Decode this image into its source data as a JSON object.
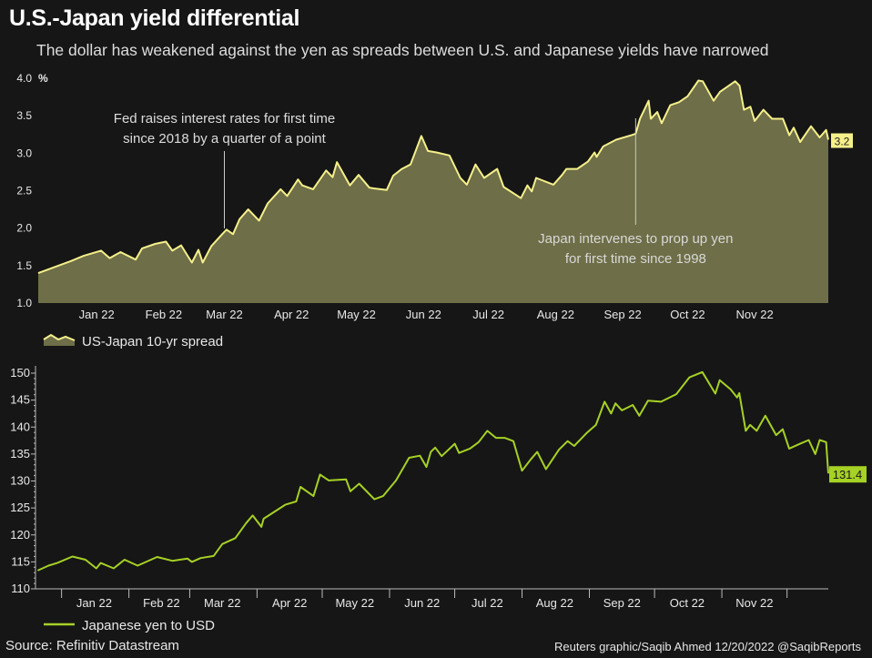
{
  "header": {
    "title": "U.S.-Japan yield differential",
    "subtitle": "The dollar has weakened against the yen as spreads between U.S. and Japanese yields have narrowed"
  },
  "footer": {
    "source": "Source: Refinitiv Datastream",
    "credit": "Reuters graphic/Saqib Ahmed 12/20/2022 @SaqibReports"
  },
  "colors": {
    "background": "#161616",
    "spread_line": "#f5f08a",
    "spread_fill": "#6e6e48",
    "yen_line": "#a6d125"
  },
  "chart_data": [
    {
      "type": "area",
      "title": "",
      "ylabel": "%",
      "ylim": [
        1.0,
        4.0
      ],
      "yticks": [
        "1.0",
        "1.5",
        "2.0",
        "2.5",
        "3.0",
        "3.5",
        "4.0"
      ],
      "xlim": [
        "2021-12-20",
        "2022-12-20"
      ],
      "xtick_labels": [
        "Jan 22",
        "Feb 22",
        "Mar 22",
        "Apr 22",
        "May 22",
        "Jun 22",
        "Jul 22",
        "Aug 22",
        "Sep 22",
        "Oct 22",
        "Nov 22"
      ],
      "grid": false,
      "legend_position": "bottom-left",
      "series": [
        {
          "name": "US-Japan 10-yr spread",
          "end_label": "3.2",
          "points": [
            [
              "2021-12-20",
              1.4
            ],
            [
              "2022-01-04",
              1.56
            ],
            [
              "2022-01-10",
              1.63
            ],
            [
              "2022-01-18",
              1.7
            ],
            [
              "2022-01-22",
              1.6
            ],
            [
              "2022-01-27",
              1.68
            ],
            [
              "2022-02-03",
              1.58
            ],
            [
              "2022-02-06",
              1.73
            ],
            [
              "2022-02-12",
              1.79
            ],
            [
              "2022-02-17",
              1.82
            ],
            [
              "2022-02-20",
              1.7
            ],
            [
              "2022-02-24",
              1.77
            ],
            [
              "2022-03-01",
              1.54
            ],
            [
              "2022-03-04",
              1.71
            ],
            [
              "2022-03-06",
              1.54
            ],
            [
              "2022-03-10",
              1.76
            ],
            [
              "2022-03-15",
              1.92
            ],
            [
              "2022-03-17",
              1.98
            ],
            [
              "2022-03-20",
              1.92
            ],
            [
              "2022-03-23",
              2.12
            ],
            [
              "2022-03-27",
              2.25
            ],
            [
              "2022-04-01",
              2.1
            ],
            [
              "2022-04-05",
              2.33
            ],
            [
              "2022-04-11",
              2.52
            ],
            [
              "2022-04-14",
              2.43
            ],
            [
              "2022-04-19",
              2.65
            ],
            [
              "2022-04-21",
              2.57
            ],
            [
              "2022-04-26",
              2.52
            ],
            [
              "2022-05-02",
              2.77
            ],
            [
              "2022-05-05",
              2.68
            ],
            [
              "2022-05-07",
              2.88
            ],
            [
              "2022-05-13",
              2.57
            ],
            [
              "2022-05-17",
              2.71
            ],
            [
              "2022-05-22",
              2.54
            ],
            [
              "2022-05-24",
              2.53
            ],
            [
              "2022-05-30",
              2.51
            ],
            [
              "2022-06-02",
              2.7
            ],
            [
              "2022-06-06",
              2.79
            ],
            [
              "2022-06-10",
              2.85
            ],
            [
              "2022-06-15",
              3.23
            ],
            [
              "2022-06-18",
              3.03
            ],
            [
              "2022-06-22",
              3.01
            ],
            [
              "2022-06-28",
              2.97
            ],
            [
              "2022-07-03",
              2.67
            ],
            [
              "2022-07-06",
              2.58
            ],
            [
              "2022-07-10",
              2.85
            ],
            [
              "2022-07-14",
              2.67
            ],
            [
              "2022-07-20",
              2.79
            ],
            [
              "2022-07-23",
              2.55
            ],
            [
              "2022-07-31",
              2.4
            ],
            [
              "2022-08-03",
              2.57
            ],
            [
              "2022-08-05",
              2.49
            ],
            [
              "2022-08-07",
              2.67
            ],
            [
              "2022-08-15",
              2.58
            ],
            [
              "2022-08-19",
              2.71
            ],
            [
              "2022-08-21",
              2.79
            ],
            [
              "2022-08-26",
              2.79
            ],
            [
              "2022-08-31",
              2.89
            ],
            [
              "2022-09-03",
              3.01
            ],
            [
              "2022-09-04",
              2.95
            ],
            [
              "2022-09-07",
              3.09
            ],
            [
              "2022-09-13",
              3.18
            ],
            [
              "2022-09-20",
              3.24
            ],
            [
              "2022-09-22",
              3.26
            ],
            [
              "2022-09-24",
              3.46
            ],
            [
              "2022-09-28",
              3.7
            ],
            [
              "2022-09-29",
              3.46
            ],
            [
              "2022-10-02",
              3.55
            ],
            [
              "2022-10-04",
              3.4
            ],
            [
              "2022-10-08",
              3.64
            ],
            [
              "2022-10-12",
              3.68
            ],
            [
              "2022-10-16",
              3.76
            ],
            [
              "2022-10-21",
              3.97
            ],
            [
              "2022-10-23",
              3.96
            ],
            [
              "2022-10-28",
              3.7
            ],
            [
              "2022-10-31",
              3.82
            ],
            [
              "2022-11-07",
              3.96
            ],
            [
              "2022-11-09",
              3.9
            ],
            [
              "2022-11-11",
              3.58
            ],
            [
              "2022-11-14",
              3.62
            ],
            [
              "2022-11-16",
              3.43
            ],
            [
              "2022-11-20",
              3.58
            ],
            [
              "2022-11-24",
              3.46
            ],
            [
              "2022-11-29",
              3.46
            ],
            [
              "2022-12-02",
              3.24
            ],
            [
              "2022-12-04",
              3.34
            ],
            [
              "2022-12-07",
              3.15
            ],
            [
              "2022-12-12",
              3.36
            ],
            [
              "2022-12-16",
              3.21
            ],
            [
              "2022-12-19",
              3.31
            ],
            [
              "2022-12-20",
              3.18
            ]
          ]
        }
      ],
      "annotations": [
        {
          "date": "2022-03-16",
          "lines": [
            "Fed raises interest rates for first time",
            "since 2018 by a quarter of a point"
          ]
        },
        {
          "date": "2022-09-22",
          "lines": [
            "Japan intervenes to prop up yen",
            "for first time since 1998"
          ]
        }
      ]
    },
    {
      "type": "line",
      "title": "",
      "ylabel": "",
      "ylim": [
        110,
        150
      ],
      "yticks": [
        "110",
        "115",
        "120",
        "125",
        "130",
        "135",
        "140",
        "145",
        "150"
      ],
      "xlim": [
        "2021-12-20",
        "2022-12-20"
      ],
      "xtick_labels": [
        "Jan 22",
        "Feb 22",
        "Mar 22",
        "Apr 22",
        "May 22",
        "Jun 22",
        "Jul 22",
        "Aug 22",
        "Sep 22",
        "Oct 22",
        "Nov 22"
      ],
      "grid": false,
      "legend_position": "bottom-left",
      "series": [
        {
          "name": "Japanese yen to USD",
          "end_label": "131.4",
          "points": [
            [
              "2021-12-21",
              113.4
            ],
            [
              "2021-12-26",
              114.3
            ],
            [
              "2021-12-30",
              114.8
            ],
            [
              "2022-01-06",
              116.0
            ],
            [
              "2022-01-12",
              115.4
            ],
            [
              "2022-01-17",
              113.8
            ],
            [
              "2022-01-19",
              114.8
            ],
            [
              "2022-01-25",
              113.8
            ],
            [
              "2022-01-30",
              115.4
            ],
            [
              "2022-02-05",
              114.3
            ],
            [
              "2022-02-14",
              115.9
            ],
            [
              "2022-02-21",
              115.2
            ],
            [
              "2022-02-28",
              115.6
            ],
            [
              "2022-03-02",
              115.0
            ],
            [
              "2022-03-06",
              115.7
            ],
            [
              "2022-03-12",
              116.1
            ],
            [
              "2022-03-16",
              118.3
            ],
            [
              "2022-03-22",
              119.4
            ],
            [
              "2022-03-27",
              122.2
            ],
            [
              "2022-03-30",
              123.6
            ],
            [
              "2022-04-03",
              121.5
            ],
            [
              "2022-04-04",
              123.0
            ],
            [
              "2022-04-14",
              125.6
            ],
            [
              "2022-04-19",
              126.2
            ],
            [
              "2022-04-21",
              128.9
            ],
            [
              "2022-04-27",
              127.2
            ],
            [
              "2022-04-30",
              131.2
            ],
            [
              "2022-05-04",
              130.1
            ],
            [
              "2022-05-12",
              130.3
            ],
            [
              "2022-05-14",
              128.1
            ],
            [
              "2022-05-18",
              129.5
            ],
            [
              "2022-05-25",
              126.6
            ],
            [
              "2022-05-29",
              127.2
            ],
            [
              "2022-06-04",
              130.1
            ],
            [
              "2022-06-10",
              134.3
            ],
            [
              "2022-06-15",
              134.7
            ],
            [
              "2022-06-18",
              132.6
            ],
            [
              "2022-06-20",
              135.4
            ],
            [
              "2022-06-22",
              136.2
            ],
            [
              "2022-06-25",
              134.6
            ],
            [
              "2022-07-01",
              136.9
            ],
            [
              "2022-07-03",
              135.2
            ],
            [
              "2022-07-08",
              136.0
            ],
            [
              "2022-07-12",
              137.2
            ],
            [
              "2022-07-16",
              139.3
            ],
            [
              "2022-07-20",
              138.0
            ],
            [
              "2022-07-24",
              138.0
            ],
            [
              "2022-07-28",
              137.4
            ],
            [
              "2022-08-01",
              131.9
            ],
            [
              "2022-08-05",
              134.0
            ],
            [
              "2022-08-08",
              135.4
            ],
            [
              "2022-08-12",
              132.2
            ],
            [
              "2022-08-18",
              135.8
            ],
            [
              "2022-08-22",
              137.4
            ],
            [
              "2022-08-25",
              136.5
            ],
            [
              "2022-08-31",
              139.0
            ],
            [
              "2022-09-04",
              140.4
            ],
            [
              "2022-09-08",
              144.7
            ],
            [
              "2022-09-11",
              142.5
            ],
            [
              "2022-09-13",
              144.4
            ],
            [
              "2022-09-16",
              143.1
            ],
            [
              "2022-09-21",
              144.1
            ],
            [
              "2022-09-24",
              142.1
            ],
            [
              "2022-09-28",
              144.9
            ],
            [
              "2022-10-04",
              144.7
            ],
            [
              "2022-10-11",
              146.1
            ],
            [
              "2022-10-17",
              149.2
            ],
            [
              "2022-10-23",
              150.2
            ],
            [
              "2022-10-29",
              146.2
            ],
            [
              "2022-10-31",
              148.7
            ],
            [
              "2022-11-05",
              147.0
            ],
            [
              "2022-11-08",
              145.5
            ],
            [
              "2022-11-09",
              146.3
            ],
            [
              "2022-11-12",
              139.3
            ],
            [
              "2022-11-14",
              140.4
            ],
            [
              "2022-11-17",
              139.3
            ],
            [
              "2022-11-21",
              142.1
            ],
            [
              "2022-11-26",
              138.5
            ],
            [
              "2022-11-29",
              139.6
            ],
            [
              "2022-12-02",
              136.0
            ],
            [
              "2022-12-07",
              136.9
            ],
            [
              "2022-12-11",
              137.6
            ],
            [
              "2022-12-14",
              135.0
            ],
            [
              "2022-12-16",
              137.6
            ],
            [
              "2022-12-19",
              137.2
            ],
            [
              "2022-12-20",
              131.4
            ]
          ]
        }
      ]
    }
  ]
}
